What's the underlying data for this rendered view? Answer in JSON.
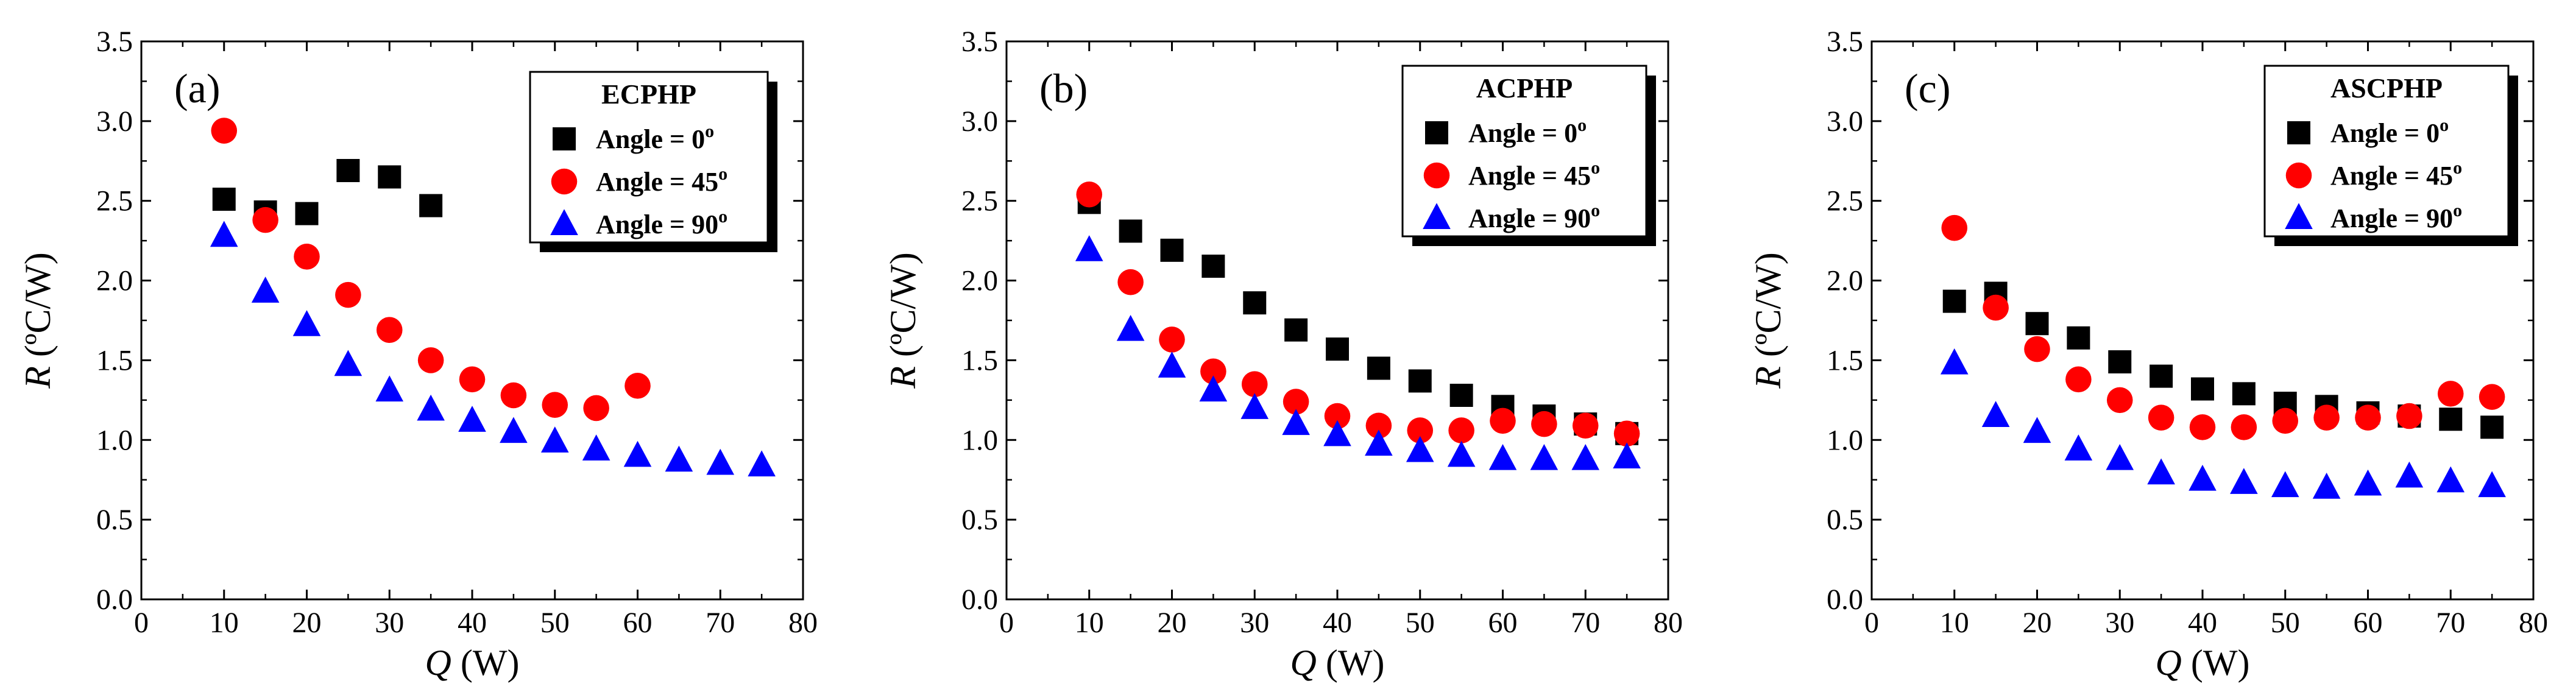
{
  "chart_data": [
    {
      "type": "scatter",
      "panel_label": "(a)",
      "legend_title": "ECPHP",
      "legend_position": "top-right",
      "xlabel_var": "Q",
      "xlabel_unit": " (W)",
      "ylabel_var": "R",
      "ylabel_unit": " (ºC/W)",
      "xlim": [
        0,
        80
      ],
      "ylim": [
        0.0,
        3.5
      ],
      "xticks": [
        "0",
        "10",
        "20",
        "30",
        "40",
        "50",
        "60",
        "70",
        "80"
      ],
      "yticks": [
        "0.0",
        "0.5",
        "1.0",
        "1.5",
        "2.0",
        "2.5",
        "3.0",
        "3.5"
      ],
      "grid": false,
      "series": [
        {
          "name": "Angle = 0",
          "sup": "o",
          "marker": "square",
          "color": "#000000",
          "x": [
            10,
            15,
            20,
            25,
            30,
            35
          ],
          "y": [
            2.51,
            2.43,
            2.42,
            2.69,
            2.65,
            2.47
          ]
        },
        {
          "name": "Angle = 45",
          "sup": "o",
          "marker": "circle",
          "color": "#ff0000",
          "x": [
            10,
            15,
            20,
            25,
            30,
            35,
            40,
            45,
            50,
            55,
            60
          ],
          "y": [
            2.94,
            2.38,
            2.15,
            1.91,
            1.69,
            1.5,
            1.38,
            1.28,
            1.22,
            1.2,
            1.34
          ]
        },
        {
          "name": "Angle = 90",
          "sup": "o",
          "marker": "triangle",
          "color": "#0000ff",
          "x": [
            10,
            15,
            20,
            25,
            30,
            35,
            40,
            45,
            50,
            55,
            60,
            65,
            70,
            75
          ],
          "y": [
            2.28,
            1.93,
            1.72,
            1.47,
            1.31,
            1.19,
            1.12,
            1.05,
            0.99,
            0.94,
            0.9,
            0.87,
            0.85,
            0.84
          ]
        }
      ]
    },
    {
      "type": "scatter",
      "panel_label": "(b)",
      "legend_title": "ACPHP",
      "legend_position": "top-right",
      "xlabel_var": "Q",
      "xlabel_unit": " (W)",
      "ylabel_var": "R",
      "ylabel_unit": " (ºC/W)",
      "xlim": [
        0,
        80
      ],
      "ylim": [
        0.0,
        3.5
      ],
      "xticks": [
        "0",
        "10",
        "20",
        "30",
        "40",
        "50",
        "60",
        "70",
        "80"
      ],
      "yticks": [
        "0.0",
        "0.5",
        "1.0",
        "1.5",
        "2.0",
        "2.5",
        "3.0",
        "3.5"
      ],
      "grid": false,
      "series": [
        {
          "name": "Angle = 0",
          "sup": "o",
          "marker": "square",
          "color": "#000000",
          "x": [
            10,
            15,
            20,
            25,
            30,
            35,
            40,
            45,
            50,
            55,
            60,
            65,
            70,
            75
          ],
          "y": [
            2.49,
            2.31,
            2.19,
            2.09,
            1.86,
            1.69,
            1.57,
            1.45,
            1.37,
            1.28,
            1.21,
            1.15,
            1.1,
            1.04
          ]
        },
        {
          "name": "Angle = 45",
          "sup": "o",
          "marker": "circle",
          "color": "#ff0000",
          "x": [
            10,
            15,
            20,
            25,
            30,
            35,
            40,
            45,
            50,
            55,
            60,
            65,
            70,
            75
          ],
          "y": [
            2.54,
            1.99,
            1.63,
            1.43,
            1.35,
            1.24,
            1.15,
            1.09,
            1.06,
            1.06,
            1.12,
            1.1,
            1.09,
            1.04
          ]
        },
        {
          "name": "Angle = 90",
          "sup": "o",
          "marker": "triangle",
          "color": "#0000ff",
          "x": [
            10,
            15,
            20,
            25,
            30,
            35,
            40,
            45,
            50,
            55,
            60,
            65,
            70,
            75
          ],
          "y": [
            2.19,
            1.69,
            1.46,
            1.31,
            1.2,
            1.1,
            1.03,
            0.97,
            0.93,
            0.9,
            0.88,
            0.88,
            0.88,
            0.89
          ]
        }
      ]
    },
    {
      "type": "scatter",
      "panel_label": "(c)",
      "legend_title": "ASCPHP",
      "legend_position": "top-right",
      "xlabel_var": "Q",
      "xlabel_unit": " (W)",
      "ylabel_var": "R",
      "ylabel_unit": " (ºC/W)",
      "xlim": [
        0,
        80
      ],
      "ylim": [
        0.0,
        3.5
      ],
      "xticks": [
        "0",
        "10",
        "20",
        "30",
        "40",
        "50",
        "60",
        "70",
        "80"
      ],
      "yticks": [
        "0.0",
        "0.5",
        "1.0",
        "1.5",
        "2.0",
        "2.5",
        "3.0",
        "3.5"
      ],
      "grid": false,
      "series": [
        {
          "name": "Angle = 0",
          "sup": "o",
          "marker": "square",
          "color": "#000000",
          "x": [
            10,
            15,
            20,
            25,
            30,
            35,
            40,
            45,
            50,
            55,
            60,
            65,
            70,
            75
          ],
          "y": [
            1.87,
            1.92,
            1.73,
            1.64,
            1.49,
            1.4,
            1.32,
            1.29,
            1.23,
            1.21,
            1.17,
            1.15,
            1.13,
            1.08
          ]
        },
        {
          "name": "Angle = 45",
          "sup": "o",
          "marker": "circle",
          "color": "#ff0000",
          "x": [
            10,
            15,
            20,
            25,
            30,
            35,
            40,
            45,
            50,
            55,
            60,
            65,
            70,
            75
          ],
          "y": [
            2.33,
            1.83,
            1.57,
            1.38,
            1.25,
            1.14,
            1.08,
            1.08,
            1.12,
            1.14,
            1.14,
            1.15,
            1.29,
            1.27
          ]
        },
        {
          "name": "Angle = 90",
          "sup": "o",
          "marker": "triangle",
          "color": "#0000ff",
          "x": [
            10,
            15,
            20,
            25,
            30,
            35,
            40,
            45,
            50,
            55,
            60,
            65,
            70,
            75
          ],
          "y": [
            1.48,
            1.15,
            1.05,
            0.94,
            0.88,
            0.79,
            0.75,
            0.73,
            0.71,
            0.7,
            0.72,
            0.77,
            0.74,
            0.71
          ]
        }
      ]
    }
  ]
}
